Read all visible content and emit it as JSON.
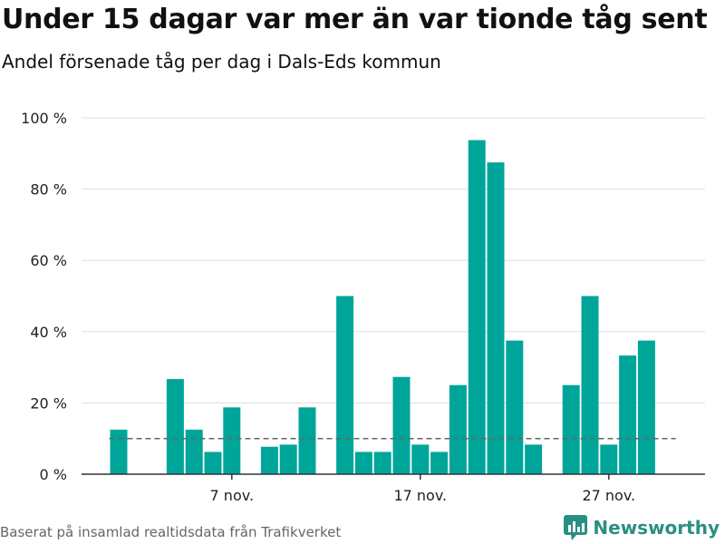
{
  "title": "Under 15 dagar var mer än var tionde tåg sent",
  "subtitle": "Andel försenade tåg per dag i Dals-Eds kommun",
  "footer": {
    "source": "Baserat på insamlad realtidsdata från Trafikverket",
    "brand": "Newsworthy",
    "brand_icon": "bar-chart-logo-icon",
    "brand_color": "#2a8f83"
  },
  "chart_data": {
    "type": "bar",
    "x_start": "2021-11-01",
    "dates": [
      "2021-11-01",
      "2021-11-02",
      "2021-11-03",
      "2021-11-04",
      "2021-11-05",
      "2021-11-06",
      "2021-11-07",
      "2021-11-08",
      "2021-11-09",
      "2021-11-10",
      "2021-11-11",
      "2021-11-12",
      "2021-11-13",
      "2021-11-14",
      "2021-11-15",
      "2021-11-16",
      "2021-11-17",
      "2021-11-18",
      "2021-11-19",
      "2021-11-20",
      "2021-11-21",
      "2021-11-22",
      "2021-11-23",
      "2021-11-24",
      "2021-11-25",
      "2021-11-26",
      "2021-11-27",
      "2021-11-28",
      "2021-11-29",
      "2021-11-30"
    ],
    "values": [
      12.5,
      null,
      null,
      26.7,
      12.5,
      6.25,
      18.75,
      null,
      7.7,
      8.3,
      18.75,
      null,
      50,
      6.25,
      6.25,
      27.3,
      8.3,
      6.25,
      25,
      93.75,
      87.5,
      37.5,
      8.3,
      null,
      25,
      50,
      8.3,
      33.3,
      37.5,
      null
    ],
    "reference_line": {
      "value": 10,
      "style": "dashed",
      "from": "2021-11-01",
      "to": "2021-11-30"
    },
    "x_ticks": [
      {
        "date": "2021-11-07",
        "label": "7 nov."
      },
      {
        "date": "2021-11-17",
        "label": "17 nov."
      },
      {
        "date": "2021-11-27",
        "label": "27 nov."
      }
    ],
    "y_ticks": [
      {
        "value": 0,
        "label": "0 %"
      },
      {
        "value": 20,
        "label": "20 %"
      },
      {
        "value": 40,
        "label": "40 %"
      },
      {
        "value": 60,
        "label": "60 %"
      },
      {
        "value": 80,
        "label": "80 %"
      },
      {
        "value": 100,
        "label": "100 %"
      }
    ],
    "ylim": [
      0,
      100
    ],
    "grid": true,
    "bar_color": "#00a59a",
    "reference_color": "#666666"
  }
}
